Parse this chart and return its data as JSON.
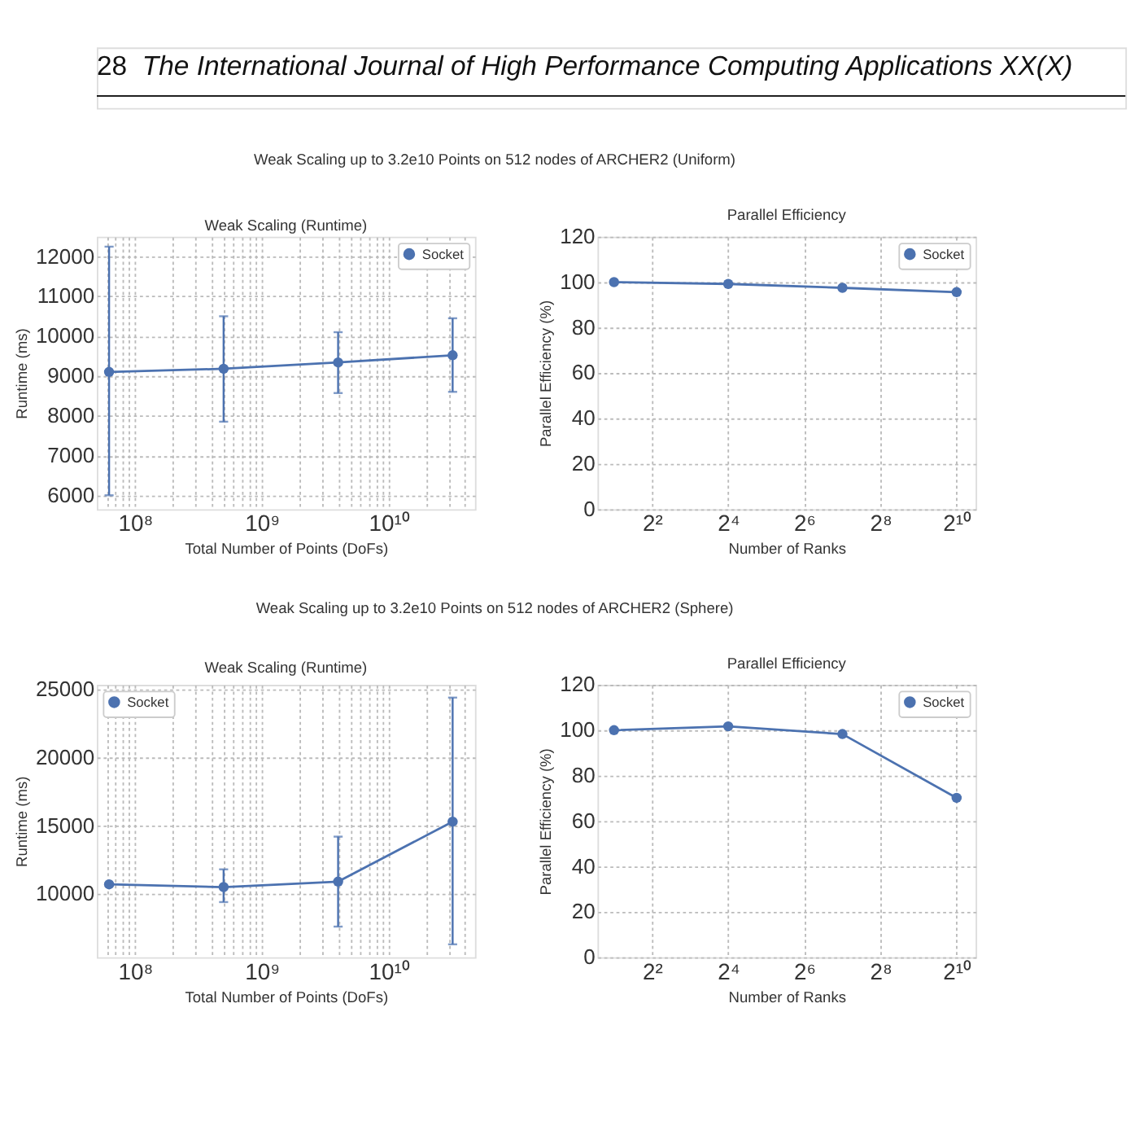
{
  "chart_data": [
    {
      "type": "line",
      "title": "Weak Scaling (Runtime)",
      "xlabel": "Total Number of Points (DoFs)",
      "ylabel": "Runtime (ms)",
      "annotations": [
        "28",
        "The International Journal of High Performance Computing Applications XX(X)",
        "Weak Scaling up to 3.2e10 Points on 512 nodes of ARCHER2 (Uniform)"
      ],
      "x": [
        62500000,
        500000000,
        4000000000,
        32000000000
      ],
      "series": [
        {
          "name": "Socket",
          "color": "#4c72b0",
          "values": [
            9100,
            9180,
            9340,
            9520
          ],
          "errors": [
            [
              6000,
              12250
            ],
            [
              7850,
              10500
            ],
            [
              8570,
              10100
            ],
            [
              8600,
              10450
            ]
          ]
        }
      ],
      "log": "x",
      "xlim": [
        50000000,
        48000000000
      ],
      "xticks": [
        {
          "value": 60000000,
          "label": null
        },
        {
          "value": 70000000,
          "label": null
        },
        {
          "value": 80000000,
          "label": null
        },
        {
          "value": 90000000,
          "label": null
        },
        {
          "value": 100000000,
          "label": "10⁸"
        },
        {
          "value": 200000000,
          "label": null
        },
        {
          "value": 300000000,
          "label": null
        },
        {
          "value": 400000000,
          "label": null
        },
        {
          "value": 500000000,
          "label": null
        },
        {
          "value": 600000000,
          "label": null
        },
        {
          "value": 700000000,
          "label": null
        },
        {
          "value": 800000000,
          "label": null
        },
        {
          "value": 900000000,
          "label": null
        },
        {
          "value": 1000000000,
          "label": "10⁹"
        },
        {
          "value": 2000000000,
          "label": null
        },
        {
          "value": 3000000000,
          "label": null
        },
        {
          "value": 4000000000,
          "label": null
        },
        {
          "value": 5000000000,
          "label": null
        },
        {
          "value": 6000000000,
          "label": null
        },
        {
          "value": 7000000000,
          "label": null
        },
        {
          "value": 8000000000,
          "label": null
        },
        {
          "value": 9000000000,
          "label": null
        },
        {
          "value": 10000000000,
          "label": "10¹⁰"
        },
        {
          "value": 20000000000,
          "label": null
        },
        {
          "value": 30000000000,
          "label": null
        },
        {
          "value": 40000000000,
          "label": null
        }
      ],
      "ylim": [
        5650,
        12500
      ],
      "yticks": [
        6000,
        7000,
        8000,
        9000,
        10000,
        11000,
        12000
      ],
      "grid": true,
      "legend": "top right",
      "marker": "circle",
      "line_style": "solid"
    },
    {
      "type": "line",
      "title": "Parallel Efficiency",
      "xlabel": "Number of Ranks",
      "ylabel": "Parallel Efficiency (%)",
      "x": [
        2,
        16,
        128,
        1024
      ],
      "series": [
        {
          "name": "Socket",
          "color": "#4c72b0",
          "values": [
            100,
            99.2,
            97.5,
            95.6
          ]
        }
      ],
      "log": "x",
      "xlim": [
        1.48,
        1448
      ],
      "xticks": [
        {
          "value": 4,
          "label": "2²"
        },
        {
          "value": 16,
          "label": "2⁴"
        },
        {
          "value": 64,
          "label": "2⁶"
        },
        {
          "value": 256,
          "label": "2⁸"
        },
        {
          "value": 1024,
          "label": "2¹⁰"
        }
      ],
      "ylim": [
        0,
        120
      ],
      "yticks": [
        0,
        20,
        40,
        60,
        80,
        100,
        120
      ],
      "grid": true,
      "legend": "top right",
      "marker": "circle",
      "line_style": "solid"
    },
    {
      "type": "line",
      "title": "Weak Scaling (Runtime)",
      "xlabel": "Total Number of Points (DoFs)",
      "ylabel": "Runtime (ms)",
      "annotations": [
        "Weak Scaling up to 3.2e10 Points on 512 nodes of ARCHER2 (Sphere)"
      ],
      "x": [
        62500000,
        500000000,
        4000000000,
        32000000000
      ],
      "series": [
        {
          "name": "Socket",
          "color": "#4c72b0",
          "values": [
            10700,
            10500,
            10900,
            15300
          ],
          "errors": [
            null,
            [
              9400,
              11800
            ],
            [
              7600,
              14200
            ],
            [
              6300,
              24400
            ]
          ]
        }
      ],
      "log": "x",
      "xlim": [
        50000000,
        48000000000
      ],
      "xticks": [
        {
          "value": 60000000,
          "label": null
        },
        {
          "value": 70000000,
          "label": null
        },
        {
          "value": 80000000,
          "label": null
        },
        {
          "value": 90000000,
          "label": null
        },
        {
          "value": 100000000,
          "label": "10⁸"
        },
        {
          "value": 200000000,
          "label": null
        },
        {
          "value": 300000000,
          "label": null
        },
        {
          "value": 400000000,
          "label": null
        },
        {
          "value": 500000000,
          "label": null
        },
        {
          "value": 600000000,
          "label": null
        },
        {
          "value": 700000000,
          "label": null
        },
        {
          "value": 800000000,
          "label": null
        },
        {
          "value": 900000000,
          "label": null
        },
        {
          "value": 1000000000,
          "label": "10⁹"
        },
        {
          "value": 2000000000,
          "label": null
        },
        {
          "value": 3000000000,
          "label": null
        },
        {
          "value": 4000000000,
          "label": null
        },
        {
          "value": 5000000000,
          "label": null
        },
        {
          "value": 6000000000,
          "label": null
        },
        {
          "value": 7000000000,
          "label": null
        },
        {
          "value": 8000000000,
          "label": null
        },
        {
          "value": 9000000000,
          "label": null
        },
        {
          "value": 10000000000,
          "label": "10¹⁰"
        },
        {
          "value": 20000000000,
          "label": null
        },
        {
          "value": 30000000000,
          "label": null
        },
        {
          "value": 40000000000,
          "label": null
        }
      ],
      "ylim": [
        5350,
        25340
      ],
      "yticks": [
        10000,
        15000,
        20000,
        25000
      ],
      "grid": true,
      "legend": "top left",
      "marker": "circle",
      "line_style": "solid"
    },
    {
      "type": "line",
      "title": "Parallel Efficiency",
      "xlabel": "Number of Ranks",
      "ylabel": "Parallel Efficiency (%)",
      "x": [
        2,
        16,
        128,
        1024
      ],
      "series": [
        {
          "name": "Socket",
          "color": "#4c72b0",
          "values": [
            100,
            101.7,
            98.3,
            70.2
          ]
        }
      ],
      "log": "x",
      "xlim": [
        1.48,
        1448
      ],
      "xticks": [
        {
          "value": 4,
          "label": "2²"
        },
        {
          "value": 16,
          "label": "2⁴"
        },
        {
          "value": 64,
          "label": "2⁶"
        },
        {
          "value": 256,
          "label": "2⁸"
        },
        {
          "value": 1024,
          "label": "2¹⁰"
        }
      ],
      "ylim": [
        0,
        120
      ],
      "yticks": [
        0,
        20,
        40,
        60,
        80,
        100,
        120
      ],
      "grid": true,
      "legend": "top right",
      "marker": "circle",
      "line_style": "solid"
    }
  ]
}
